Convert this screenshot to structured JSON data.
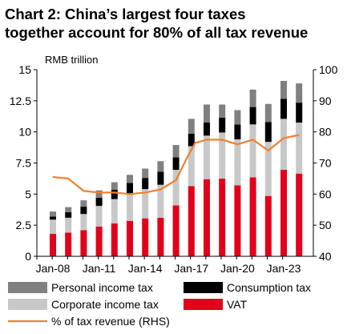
{
  "title_line1": "Chart 2: China’s largest four taxes",
  "title_line2": "together account for 80% of all tax revenue",
  "chart_data": {
    "type": "bar",
    "stacked": true,
    "y_unit_label": "RMB trillion",
    "categories": [
      "2008",
      "2009",
      "2010",
      "2011",
      "2012",
      "2013",
      "2014",
      "2015",
      "2016",
      "2017",
      "2018",
      "2019",
      "2020",
      "2021",
      "2022",
      "2023",
      "2024"
    ],
    "x_tick_labels": [
      "Jan-08",
      "Jan-11",
      "Jan-14",
      "Jan-17",
      "Jan-20",
      "Jan-23"
    ],
    "ylim_left": [
      0,
      15
    ],
    "yticks_left": [
      "0",
      "2.5",
      "5",
      "7.5",
      "10",
      "12.5",
      "15"
    ],
    "ylim_right": [
      40,
      100
    ],
    "yticks_right": [
      "40",
      "50",
      "60",
      "70",
      "80",
      "90",
      "100"
    ],
    "series": [
      {
        "name": "VAT",
        "color": "#e2001a",
        "values": [
          1.8,
          1.9,
          2.1,
          2.4,
          2.65,
          2.85,
          3.05,
          3.1,
          4.1,
          5.65,
          6.2,
          6.25,
          5.7,
          6.35,
          4.85,
          6.95,
          6.65
        ]
      },
      {
        "name": "Corporate income tax",
        "color": "#c8c8c8",
        "values": [
          1.15,
          1.2,
          1.3,
          1.65,
          1.95,
          2.2,
          2.35,
          2.65,
          2.85,
          3.2,
          3.5,
          3.7,
          3.7,
          4.25,
          4.35,
          4.1,
          4.1
        ]
      },
      {
        "name": "Consumption tax",
        "color": "#000000",
        "values": [
          0.25,
          0.45,
          0.6,
          0.65,
          0.75,
          0.85,
          0.9,
          1.05,
          1.0,
          1.0,
          1.05,
          1.2,
          1.2,
          1.4,
          1.6,
          1.6,
          1.6
        ]
      },
      {
        "name": "Personal income tax",
        "color": "#808080",
        "values": [
          0.4,
          0.4,
          0.5,
          0.6,
          0.6,
          0.65,
          0.75,
          0.85,
          1.0,
          1.2,
          1.45,
          1.05,
          1.15,
          1.4,
          1.45,
          1.45,
          1.55
        ]
      }
    ],
    "line_series": {
      "name": "% of tax revenue (RHS)",
      "color": "#f08030",
      "axis": "right",
      "x": [
        2008,
        2009,
        2010,
        2011,
        2012,
        2013,
        2014,
        2015,
        2016,
        2016.75,
        2017.25,
        2018,
        2019,
        2020,
        2021,
        2022,
        2023,
        2024
      ],
      "values": [
        65.5,
        65,
        61,
        60.5,
        60.5,
        60,
        60.5,
        61.5,
        64.5,
        72,
        76.5,
        77.5,
        77.5,
        76,
        77.5,
        74,
        78,
        79
      ]
    },
    "legend": [
      {
        "label": "Personal income tax",
        "color": "#808080",
        "kind": "box"
      },
      {
        "label": "Consumption tax",
        "color": "#000000",
        "kind": "box"
      },
      {
        "label": "Corporate income tax",
        "color": "#c8c8c8",
        "kind": "box"
      },
      {
        "label": "VAT",
        "color": "#e2001a",
        "kind": "box"
      },
      {
        "label": "% of tax revenue (RHS)",
        "color": "#f08030",
        "kind": "line"
      }
    ],
    "legend_position": "bottom"
  }
}
